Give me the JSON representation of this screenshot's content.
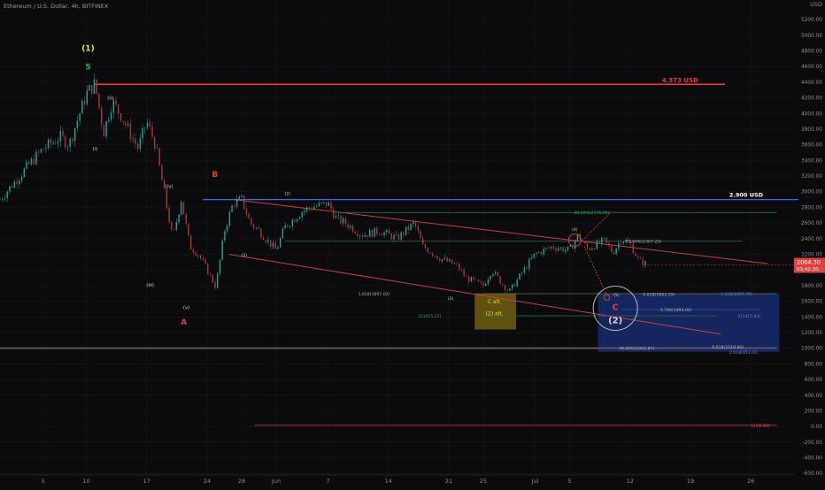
{
  "header": {
    "symbol_title": "Ethereum / U.S. Dollar, 4h, BITFINEX"
  },
  "colors": {
    "background": "#0b0b0e",
    "candle_up": "#26a69a",
    "candle_down": "#a63c3c",
    "wave_count": "#d8d8d8",
    "wave_abc": "#e0413a",
    "wave_green": "#35a853",
    "wave_yellow": "#f0e130",
    "level_red": "#e0413a",
    "level_blue": "#2f6fe8",
    "target_box": "#1a2f7a",
    "alt_box": "#7d6a12",
    "channel": "#c2414a",
    "fib_green": "#2a9c48",
    "price_badge": "#e0413a"
  },
  "chart_data": {
    "type": "candlestick",
    "title": "Ethereum / U.S. Dollar, 4h, BITFINEX",
    "y_axis": {
      "label": "USD",
      "range": [
        -620,
        5450
      ],
      "ticks": [
        5200,
        5000,
        4800,
        4600,
        4400,
        4200,
        4000,
        3800,
        3600,
        3400,
        3200,
        3000,
        2800,
        2600,
        2400,
        2200,
        2000,
        1800,
        1600,
        1400,
        1200,
        1000,
        800,
        600,
        400,
        200,
        0,
        -200,
        -400,
        -600
      ],
      "tick_labels": [
        "5200.00",
        "5000.00",
        "4800.00",
        "4600.00",
        "4400.00",
        "4200.00",
        "4000.00",
        "3800.00",
        "3600.00",
        "3400.00",
        "3200.00",
        "3000.00",
        "2800.00",
        "2600.00",
        "2400.00",
        "2200.00",
        "2000.00",
        "1800.00",
        "1600.00",
        "1400.00",
        "1200.00",
        "1000.00",
        "800.00",
        "600.00",
        "400.00",
        "200.00",
        "0.00",
        "-200.00",
        "-400.00",
        "-600.00"
      ]
    },
    "x_axis": {
      "range": [
        0,
        139
      ],
      "ticks": [
        {
          "day": 5,
          "label": "5"
        },
        {
          "day": 10,
          "label": "10"
        },
        {
          "day": 17,
          "label": "17"
        },
        {
          "day": 24,
          "label": "24"
        },
        {
          "day": 28,
          "label": "28"
        },
        {
          "day": 32,
          "label": "Jun"
        },
        {
          "day": 38,
          "label": "7"
        },
        {
          "day": 45,
          "label": "14"
        },
        {
          "day": 52,
          "label": "21"
        },
        {
          "day": 56,
          "label": "25"
        },
        {
          "day": 62,
          "label": "Jul"
        },
        {
          "day": 66,
          "label": "5"
        },
        {
          "day": 73,
          "label": "12"
        },
        {
          "day": 80,
          "label": "19"
        },
        {
          "day": 87,
          "label": "26"
        }
      ]
    },
    "price_path": [
      [
        0,
        2900
      ],
      [
        3,
        3300
      ],
      [
        5,
        3550
      ],
      [
        7,
        3700
      ],
      [
        8,
        3600
      ],
      [
        10,
        4250
      ],
      [
        11,
        4380
      ],
      [
        12,
        3750
      ],
      [
        13,
        4150
      ],
      [
        14,
        3980
      ],
      [
        16,
        3550
      ],
      [
        17,
        3900
      ],
      [
        18,
        3600
      ],
      [
        19,
        3000
      ],
      [
        20,
        2400
      ],
      [
        21,
        2900
      ],
      [
        22,
        2300
      ],
      [
        23,
        2200
      ],
      [
        24,
        2000
      ],
      [
        25,
        1780
      ],
      [
        26,
        2500
      ],
      [
        27,
        2850
      ],
      [
        28,
        2900
      ],
      [
        29,
        2600
      ],
      [
        30,
        2500
      ],
      [
        32,
        2250
      ],
      [
        33,
        2550
      ],
      [
        35,
        2750
      ],
      [
        36,
        2800
      ],
      [
        38,
        2850
      ],
      [
        39,
        2650
      ],
      [
        40,
        2600
      ],
      [
        42,
        2450
      ],
      [
        44,
        2500
      ],
      [
        46,
        2400
      ],
      [
        48,
        2600
      ],
      [
        49,
        2300
      ],
      [
        51,
        2150
      ],
      [
        53,
        2050
      ],
      [
        54,
        1900
      ],
      [
        56,
        1800
      ],
      [
        57,
        2000
      ],
      [
        58,
        1850
      ],
      [
        59,
        1720
      ],
      [
        61,
        2050
      ],
      [
        62,
        2200
      ],
      [
        64,
        2300
      ],
      [
        66,
        2250
      ],
      [
        67,
        2450
      ],
      [
        68,
        2270
      ],
      [
        70,
        2370
      ],
      [
        71,
        2220
      ],
      [
        72,
        2400
      ],
      [
        73,
        2340
      ],
      [
        74,
        2120
      ],
      [
        75,
        2064
      ]
    ],
    "current_price": {
      "value": 2064.3,
      "label": "2064.30",
      "countdown": "03:42:20"
    },
    "horizontal_levels": [
      {
        "name": "ath-level",
        "price": 4373,
        "label": "4.373 USD",
        "color": "red"
      },
      {
        "name": "resistance-level",
        "price": 2900,
        "label": "2.900 USD",
        "color": "blue"
      },
      {
        "name": "support-level",
        "price": 1000,
        "label": "",
        "color": "grey"
      },
      {
        "name": "deep-level",
        "price": 14.43,
        "label": "1(14.43)",
        "color": "red"
      }
    ],
    "fib_labels": [
      {
        "price": 2735.06,
        "text": "38.20%(2735.06)",
        "color": "green"
      },
      {
        "price": 2367.23,
        "text": "23.60%(2367.23)",
        "color": "grey"
      },
      {
        "price": 1697.02,
        "text": "1.618(1697.02)",
        "color": "grey"
      },
      {
        "price": 1415.21,
        "text": "2(1415.21)",
        "color": "green"
      },
      {
        "price": 1693.1,
        "text": "0.618(1693.10)",
        "color": "grey"
      },
      {
        "price": 1697.79,
        "text": "1.618(1697.79)",
        "color": "blue"
      },
      {
        "price": 1494.0,
        "text": "0.786(1494.00)",
        "color": "grey"
      },
      {
        "price": 1415.83,
        "text": "2(1415.83)",
        "color": "blue"
      },
      {
        "price": 1003.87,
        "text": "78.60%(1003.87)",
        "color": "grey"
      },
      {
        "price": 1018.86,
        "text": "0.618(1018.86)",
        "color": "grey"
      },
      {
        "price": 953.92,
        "text": "2.618(953.92)",
        "color": "blue"
      }
    ],
    "wave_labels": [
      {
        "text": "(1)",
        "color": "yellow"
      },
      {
        "text": "5",
        "color": "green"
      },
      {
        "text": "(ii)",
        "color": "white"
      },
      {
        "text": "(i)",
        "color": "white"
      },
      {
        "text": "(iv)",
        "color": "white"
      },
      {
        "text": "(iii)",
        "color": "white"
      },
      {
        "text": "(v)",
        "color": "white"
      },
      {
        "text": "A",
        "color": "red"
      },
      {
        "text": "B",
        "color": "red"
      },
      {
        "text": "(2)",
        "color": "white"
      },
      {
        "text": "(1)",
        "color": "white"
      },
      {
        "text": "(3)",
        "color": "white"
      },
      {
        "text": "(4)",
        "color": "white"
      },
      {
        "text": "(5)",
        "color": "white"
      },
      {
        "text": "C",
        "color": "red"
      },
      {
        "text": "(2)",
        "color": "white"
      },
      {
        "text": "C alt.",
        "color": "yellow"
      },
      {
        "text": "(2) alt.",
        "color": "yellow"
      }
    ]
  }
}
